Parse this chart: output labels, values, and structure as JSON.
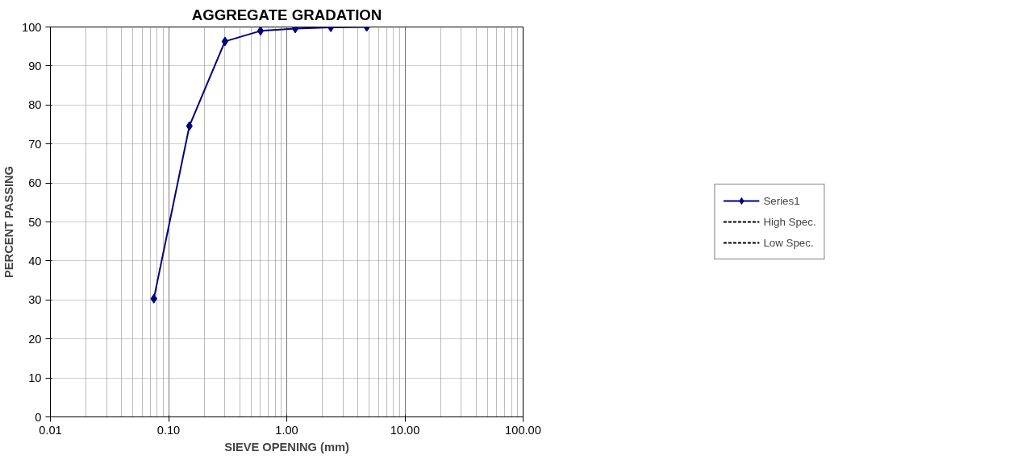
{
  "chart_data": {
    "type": "line",
    "title": "AGGREGATE GRADATION",
    "xlabel": "SIEVE OPENING (mm)",
    "ylabel": "PERCENT PASSING",
    "x": [
      0.075,
      0.15,
      0.3,
      0.6,
      1.18,
      2.36,
      4.75
    ],
    "series": [
      {
        "name": "Series1",
        "color": "#000080",
        "values": [
          30.3,
          74.6,
          96.3,
          99.0,
          99.6,
          99.9,
          100.0
        ],
        "marker": "diamond",
        "line_style": "solid"
      },
      {
        "name": "High Spec.",
        "color": "#000000",
        "values": [
          null,
          null,
          null,
          null,
          null,
          null,
          null
        ],
        "marker": "none",
        "line_style": "dashed"
      },
      {
        "name": "Low Spec.",
        "color": "#000000",
        "values": [
          null,
          null,
          null,
          null,
          null,
          null,
          null
        ],
        "marker": "none",
        "line_style": "dashed"
      }
    ],
    "log": "x",
    "xlim": [
      0.01,
      100
    ],
    "xticks": [
      {
        "value": 0.01,
        "label": "0.01"
      },
      {
        "value": 0.1,
        "label": "0.10"
      },
      {
        "value": 1,
        "label": "1.00"
      },
      {
        "value": 10,
        "label": "10.00"
      },
      {
        "value": 100,
        "label": "100.00"
      }
    ],
    "ylim": [
      0,
      100
    ],
    "yticks": [
      0,
      10,
      20,
      30,
      40,
      50,
      60,
      70,
      80,
      90,
      100
    ],
    "grid": true,
    "legend": "right"
  }
}
